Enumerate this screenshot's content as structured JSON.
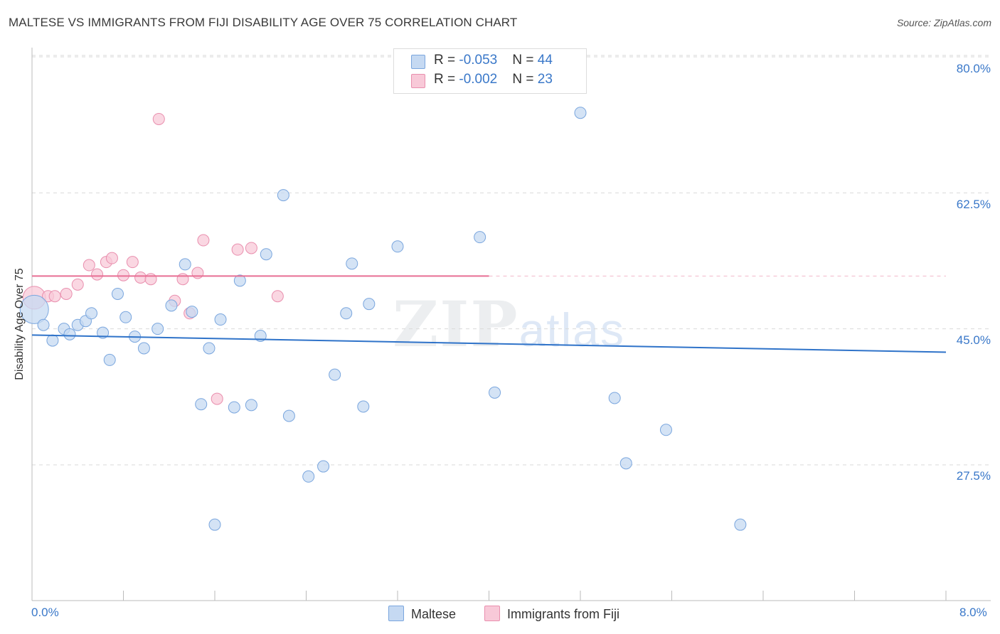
{
  "title": "MALTESE VS IMMIGRANTS FROM FIJI DISABILITY AGE OVER 75 CORRELATION CHART",
  "source": "Source: ZipAtlas.com",
  "watermark": {
    "zip": "ZIP",
    "atlas": "atlas"
  },
  "colors": {
    "maltese_fill": "#c5d9f2",
    "maltese_stroke": "#7aa6de",
    "maltese_line": "#2f73c9",
    "fiji_fill": "#f8c9d8",
    "fiji_stroke": "#e98fae",
    "fiji_line": "#e86f94",
    "tick_text": "#3a78c9",
    "grid": "#d9d9d9"
  },
  "legend": {
    "rows": [
      {
        "r_label": "R = ",
        "r_value": "-0.053",
        "n_label": "N = ",
        "n_value": "44"
      },
      {
        "r_label": "R = ",
        "r_value": "-0.002",
        "n_label": "N = ",
        "n_value": "23"
      }
    ]
  },
  "bottom_legend": {
    "maltese": "Maltese",
    "fiji": "Immigrants from Fiji"
  },
  "chart_data": {
    "type": "scatter",
    "title": "MALTESE VS IMMIGRANTS FROM FIJI DISABILITY AGE OVER 75 CORRELATION CHART",
    "xlabel": "",
    "ylabel": "Disability Age Over 75",
    "xlim": [
      0.0,
      8.0
    ],
    "ylim": [
      10.0,
      83.0
    ],
    "x_tick_labels": [
      "0.0%",
      "8.0%"
    ],
    "y_ticks": [
      27.5,
      45.0,
      62.5,
      80.0
    ],
    "y_tick_labels": [
      "27.5%",
      "45.0%",
      "62.5%",
      "80.0%"
    ],
    "grid": true,
    "series": [
      {
        "name": "Maltese",
        "r": -0.053,
        "n": 44,
        "trend": {
          "x": [
            0.0,
            8.0
          ],
          "y": [
            44.2,
            42.0
          ]
        },
        "x": [
          0.02,
          0.1,
          0.18,
          0.28,
          0.33,
          0.4,
          0.47,
          0.52,
          0.62,
          0.68,
          0.75,
          0.82,
          0.9,
          0.98,
          1.1,
          1.22,
          1.34,
          1.4,
          1.48,
          1.55,
          1.6,
          1.65,
          1.77,
          1.82,
          1.92,
          2.0,
          2.05,
          2.2,
          2.25,
          2.42,
          2.55,
          2.65,
          2.75,
          2.8,
          2.9,
          2.95,
          3.2,
          3.92,
          4.05,
          4.8,
          5.1,
          5.2,
          5.55,
          6.2
        ],
        "y": [
          47.5,
          45.5,
          43.5,
          45.0,
          44.3,
          45.5,
          46.0,
          47.0,
          44.5,
          41.0,
          49.5,
          46.5,
          44.0,
          42.5,
          45.0,
          48.0,
          53.3,
          47.2,
          35.3,
          42.5,
          19.8,
          46.2,
          34.9,
          51.2,
          35.2,
          44.1,
          54.6,
          62.2,
          33.8,
          26.0,
          27.3,
          39.1,
          47.0,
          53.4,
          35.0,
          48.2,
          55.6,
          56.8,
          36.8,
          72.8,
          36.1,
          27.7,
          32.0,
          19.8
        ]
      },
      {
        "name": "Immigrants from Fiji",
        "r": -0.002,
        "n": 23,
        "trend": {
          "x": [
            0.0,
            4.0
          ],
          "y": [
            51.8,
            51.8
          ]
        },
        "trend_dashed": {
          "x": [
            4.0,
            8.0
          ],
          "y": [
            51.8,
            51.8
          ]
        },
        "x": [
          0.02,
          0.14,
          0.2,
          0.3,
          0.4,
          0.5,
          0.57,
          0.65,
          0.7,
          0.8,
          0.88,
          0.95,
          1.04,
          1.11,
          1.25,
          1.32,
          1.38,
          1.45,
          1.5,
          1.62,
          1.8,
          1.92,
          2.15
        ],
        "y": [
          49.0,
          49.2,
          49.2,
          49.5,
          50.7,
          53.2,
          52.0,
          53.6,
          54.1,
          51.9,
          53.6,
          51.6,
          51.4,
          72.0,
          48.6,
          51.4,
          47.0,
          52.2,
          56.4,
          36.0,
          55.2,
          55.4,
          49.2
        ]
      }
    ]
  }
}
